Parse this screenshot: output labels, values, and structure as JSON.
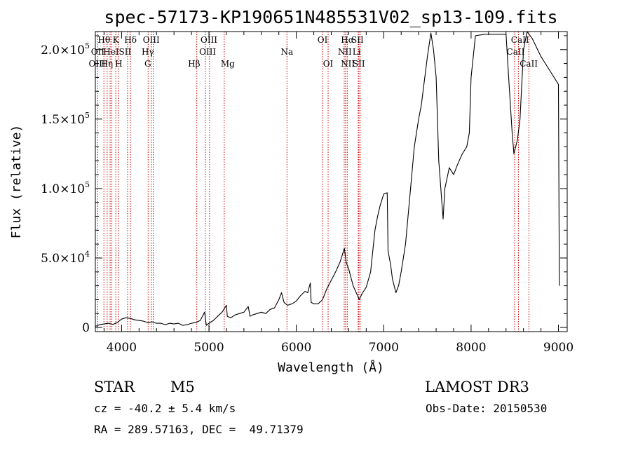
{
  "chart_data": {
    "type": "line",
    "title": "spec-57173-KP190651N485531V02_sp13-109.fits",
    "xlabel": "Wavelength (Å)",
    "ylabel": "Flux (relative)",
    "xlim": [
      3700,
      9100
    ],
    "ylim": [
      -3000,
      213000
    ],
    "x_ticks": [
      {
        "value": 4000,
        "label": "4000"
      },
      {
        "value": 5000,
        "label": "5000"
      },
      {
        "value": 6000,
        "label": "6000"
      },
      {
        "value": 7000,
        "label": "7000"
      },
      {
        "value": 8000,
        "label": "8000"
      },
      {
        "value": 9000,
        "label": "9000"
      }
    ],
    "y_ticks": [
      {
        "value": 0,
        "mantissa": "0",
        "exponent": ""
      },
      {
        "value": 50000,
        "mantissa": "5.0×10",
        "exponent": "4"
      },
      {
        "value": 100000,
        "mantissa": "1.0×10",
        "exponent": "5"
      },
      {
        "value": 150000,
        "mantissa": "1.5×10",
        "exponent": "5"
      },
      {
        "value": 200000,
        "mantissa": "2.0×10",
        "exponent": "5"
      }
    ],
    "grid": false,
    "series": [
      {
        "name": "spectrum",
        "points": [
          [
            3700,
            800
          ],
          [
            3750,
            2000
          ],
          [
            3800,
            2500
          ],
          [
            3850,
            3000
          ],
          [
            3900,
            2200
          ],
          [
            3950,
            3500
          ],
          [
            4000,
            6000
          ],
          [
            4050,
            7000
          ],
          [
            4100,
            6500
          ],
          [
            4150,
            5500
          ],
          [
            4200,
            5000
          ],
          [
            4250,
            4500
          ],
          [
            4300,
            3500
          ],
          [
            4350,
            4000
          ],
          [
            4400,
            3000
          ],
          [
            4450,
            3000
          ],
          [
            4500,
            2000
          ],
          [
            4550,
            3000
          ],
          [
            4600,
            2500
          ],
          [
            4650,
            3000
          ],
          [
            4700,
            1500
          ],
          [
            4750,
            2000
          ],
          [
            4800,
            3000
          ],
          [
            4850,
            3500
          ],
          [
            4900,
            5000
          ],
          [
            4950,
            11000
          ],
          [
            4970,
            1500
          ],
          [
            5000,
            3000
          ],
          [
            5050,
            5000
          ],
          [
            5100,
            8000
          ],
          [
            5150,
            11000
          ],
          [
            5200,
            16000
          ],
          [
            5210,
            8000
          ],
          [
            5250,
            7000
          ],
          [
            5300,
            9000
          ],
          [
            5350,
            10000
          ],
          [
            5400,
            11000
          ],
          [
            5450,
            15000
          ],
          [
            5470,
            8000
          ],
          [
            5500,
            9000
          ],
          [
            5550,
            10000
          ],
          [
            5600,
            11000
          ],
          [
            5650,
            10000
          ],
          [
            5700,
            13000
          ],
          [
            5750,
            14000
          ],
          [
            5800,
            20000
          ],
          [
            5830,
            25000
          ],
          [
            5860,
            18000
          ],
          [
            5900,
            16000
          ],
          [
            5950,
            17000
          ],
          [
            6000,
            19000
          ],
          [
            6050,
            23000
          ],
          [
            6100,
            26000
          ],
          [
            6130,
            25000
          ],
          [
            6160,
            32000
          ],
          [
            6170,
            18000
          ],
          [
            6200,
            17000
          ],
          [
            6250,
            17000
          ],
          [
            6300,
            20000
          ],
          [
            6350,
            28000
          ],
          [
            6400,
            34000
          ],
          [
            6450,
            40000
          ],
          [
            6500,
            47000
          ],
          [
            6550,
            57000
          ],
          [
            6570,
            47000
          ],
          [
            6600,
            42000
          ],
          [
            6650,
            30000
          ],
          [
            6700,
            23000
          ],
          [
            6720,
            20000
          ],
          [
            6750,
            24000
          ],
          [
            6800,
            29000
          ],
          [
            6850,
            40000
          ],
          [
            6900,
            70000
          ],
          [
            6930,
            80000
          ],
          [
            6960,
            88000
          ],
          [
            7000,
            96000
          ],
          [
            7040,
            97000
          ],
          [
            7050,
            55000
          ],
          [
            7080,
            45000
          ],
          [
            7100,
            35000
          ],
          [
            7120,
            30000
          ],
          [
            7140,
            25000
          ],
          [
            7170,
            30000
          ],
          [
            7200,
            40000
          ],
          [
            7250,
            60000
          ],
          [
            7300,
            95000
          ],
          [
            7350,
            130000
          ],
          [
            7400,
            150000
          ],
          [
            7430,
            160000
          ],
          [
            7450,
            170000
          ],
          [
            7500,
            195000
          ],
          [
            7540,
            212000
          ],
          [
            7570,
            200000
          ],
          [
            7600,
            180000
          ],
          [
            7630,
            120000
          ],
          [
            7660,
            95000
          ],
          [
            7680,
            78000
          ],
          [
            7700,
            100000
          ],
          [
            7750,
            115000
          ],
          [
            7800,
            110000
          ],
          [
            7850,
            118000
          ],
          [
            7900,
            125000
          ],
          [
            7950,
            130000
          ],
          [
            7980,
            140000
          ],
          [
            8000,
            180000
          ],
          [
            8050,
            210000
          ],
          [
            8150,
            211000
          ],
          [
            8300,
            211000
          ],
          [
            8400,
            211000
          ],
          [
            8430,
            180000
          ],
          [
            8450,
            160000
          ],
          [
            8470,
            140000
          ],
          [
            8490,
            125000
          ],
          [
            8510,
            130000
          ],
          [
            8530,
            135000
          ],
          [
            8560,
            150000
          ],
          [
            8600,
            200000
          ],
          [
            8640,
            213000
          ],
          [
            8700,
            208000
          ],
          [
            8800,
            195000
          ],
          [
            8900,
            185000
          ],
          [
            9000,
            175000
          ],
          [
            9010,
            30000
          ]
        ]
      }
    ],
    "line_markers": [
      {
        "label": "Hθ",
        "wl": 3798,
        "row": 1,
        "label_wl": 3798
      },
      {
        "label": "OII",
        "wl": 3727,
        "row": 2,
        "label_wl": 3727
      },
      {
        "label": "OIII",
        "wl": 3869,
        "row": 3,
        "label_wl": 3720
      },
      {
        "label": "Hη",
        "wl": 3835,
        "row": 3,
        "label_wl": 3830
      },
      {
        "label": "K",
        "wl": 3934,
        "row": 1,
        "label_wl": 3934
      },
      {
        "label": "HeI",
        "wl": 3889,
        "row": 2,
        "label_wl": 3880
      },
      {
        "label": "H",
        "wl": 3968,
        "row": 3,
        "label_wl": 3968
      },
      {
        "label": "Hδ",
        "wl": 4102,
        "row": 1,
        "label_wl": 4102
      },
      {
        "label": "SII",
        "wl": 4069,
        "row": 2,
        "label_wl": 4040
      },
      {
        "label": "OIII",
        "wl": 4363,
        "row": 1,
        "label_wl": 4340
      },
      {
        "label": "Hγ",
        "wl": 4340,
        "row": 2,
        "label_wl": 4300
      },
      {
        "label": "G",
        "wl": 4304,
        "row": 3,
        "label_wl": 4300
      },
      {
        "label": "Hβ",
        "wl": 4861,
        "row": 3,
        "label_wl": 4830
      },
      {
        "label": "OIII",
        "wl": 4959,
        "row": 1,
        "label_wl": 5000
      },
      {
        "label": "OIII",
        "wl": 5007,
        "row": 2,
        "label_wl": 4985
      },
      {
        "label": "Mg",
        "wl": 5175,
        "row": 3,
        "label_wl": 5215
      },
      {
        "label": "Na",
        "wl": 5893,
        "row": 2,
        "label_wl": 5893
      },
      {
        "label": "OI",
        "wl": 6300,
        "row": 1,
        "label_wl": 6300
      },
      {
        "label": "OI",
        "wl": 6364,
        "row": 3,
        "label_wl": 6364
      },
      {
        "label": "Hα",
        "wl": 6563,
        "row": 1,
        "label_wl": 6585
      },
      {
        "label": "NII",
        "wl": 6548,
        "row": 2,
        "label_wl": 6555
      },
      {
        "label": "NII",
        "wl": 6583,
        "row": 3,
        "label_wl": 6590
      },
      {
        "label": "SII",
        "wl": 6716,
        "row": 1,
        "label_wl": 6700
      },
      {
        "label": "Li",
        "wl": 6708,
        "row": 2,
        "label_wl": 6690
      },
      {
        "label": "SII",
        "wl": 6731,
        "row": 3,
        "label_wl": 6715
      },
      {
        "label": "CaII",
        "wl": 8498,
        "row": 1,
        "label_wl": 8560
      },
      {
        "label": "CaII",
        "wl": 8542,
        "row": 2,
        "label_wl": 8510
      },
      {
        "label": "CaII",
        "wl": 8662,
        "row": 3,
        "label_wl": 8660
      }
    ]
  },
  "info": {
    "object_class": "STAR",
    "subclass": "M5",
    "survey": "LAMOST DR3",
    "redshift": "cz = -40.2 ± 5.4 km/s",
    "obs_date": "Obs-Date: 20150530",
    "coords": "RA = 289.57163, DEC =  49.71379"
  },
  "colors": {
    "spectrum": "#000000",
    "line_marker": "#cc0000",
    "axes": "#000000",
    "background": "#ffffff"
  }
}
